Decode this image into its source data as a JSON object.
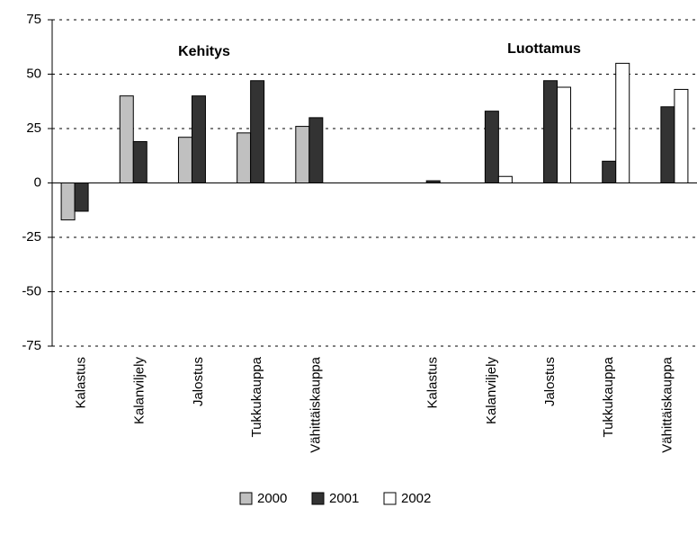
{
  "chart_data": {
    "type": "bar",
    "annotations": [
      "Kehitys",
      "Luottamus"
    ],
    "categories": [
      "Kalastus",
      "Kalanviljely",
      "Jalostus",
      "Tukkukauppa",
      "Vähittäiskauppa",
      null,
      "Kalastus",
      "Kalanviljely",
      "Jalostus",
      "Tukkukauppa",
      "Vähittäiskauppa"
    ],
    "series": [
      {
        "name": "2000",
        "color": "#c0c0c0",
        "values": [
          -17,
          40,
          21,
          23,
          26,
          null,
          null,
          null,
          null,
          null,
          null
        ]
      },
      {
        "name": "2001",
        "color": "#333333",
        "values": [
          -13,
          19,
          40,
          47,
          30,
          null,
          1,
          33,
          47,
          10,
          35
        ]
      },
      {
        "name": "2002",
        "color": "#ffffff",
        "values": [
          null,
          null,
          null,
          null,
          null,
          null,
          null,
          3,
          44,
          55,
          43
        ]
      }
    ],
    "ylim": [
      -75,
      75
    ],
    "yticks": [
      -75,
      -50,
      -25,
      0,
      25,
      50,
      75
    ],
    "grid": true,
    "legend": "bottom"
  }
}
